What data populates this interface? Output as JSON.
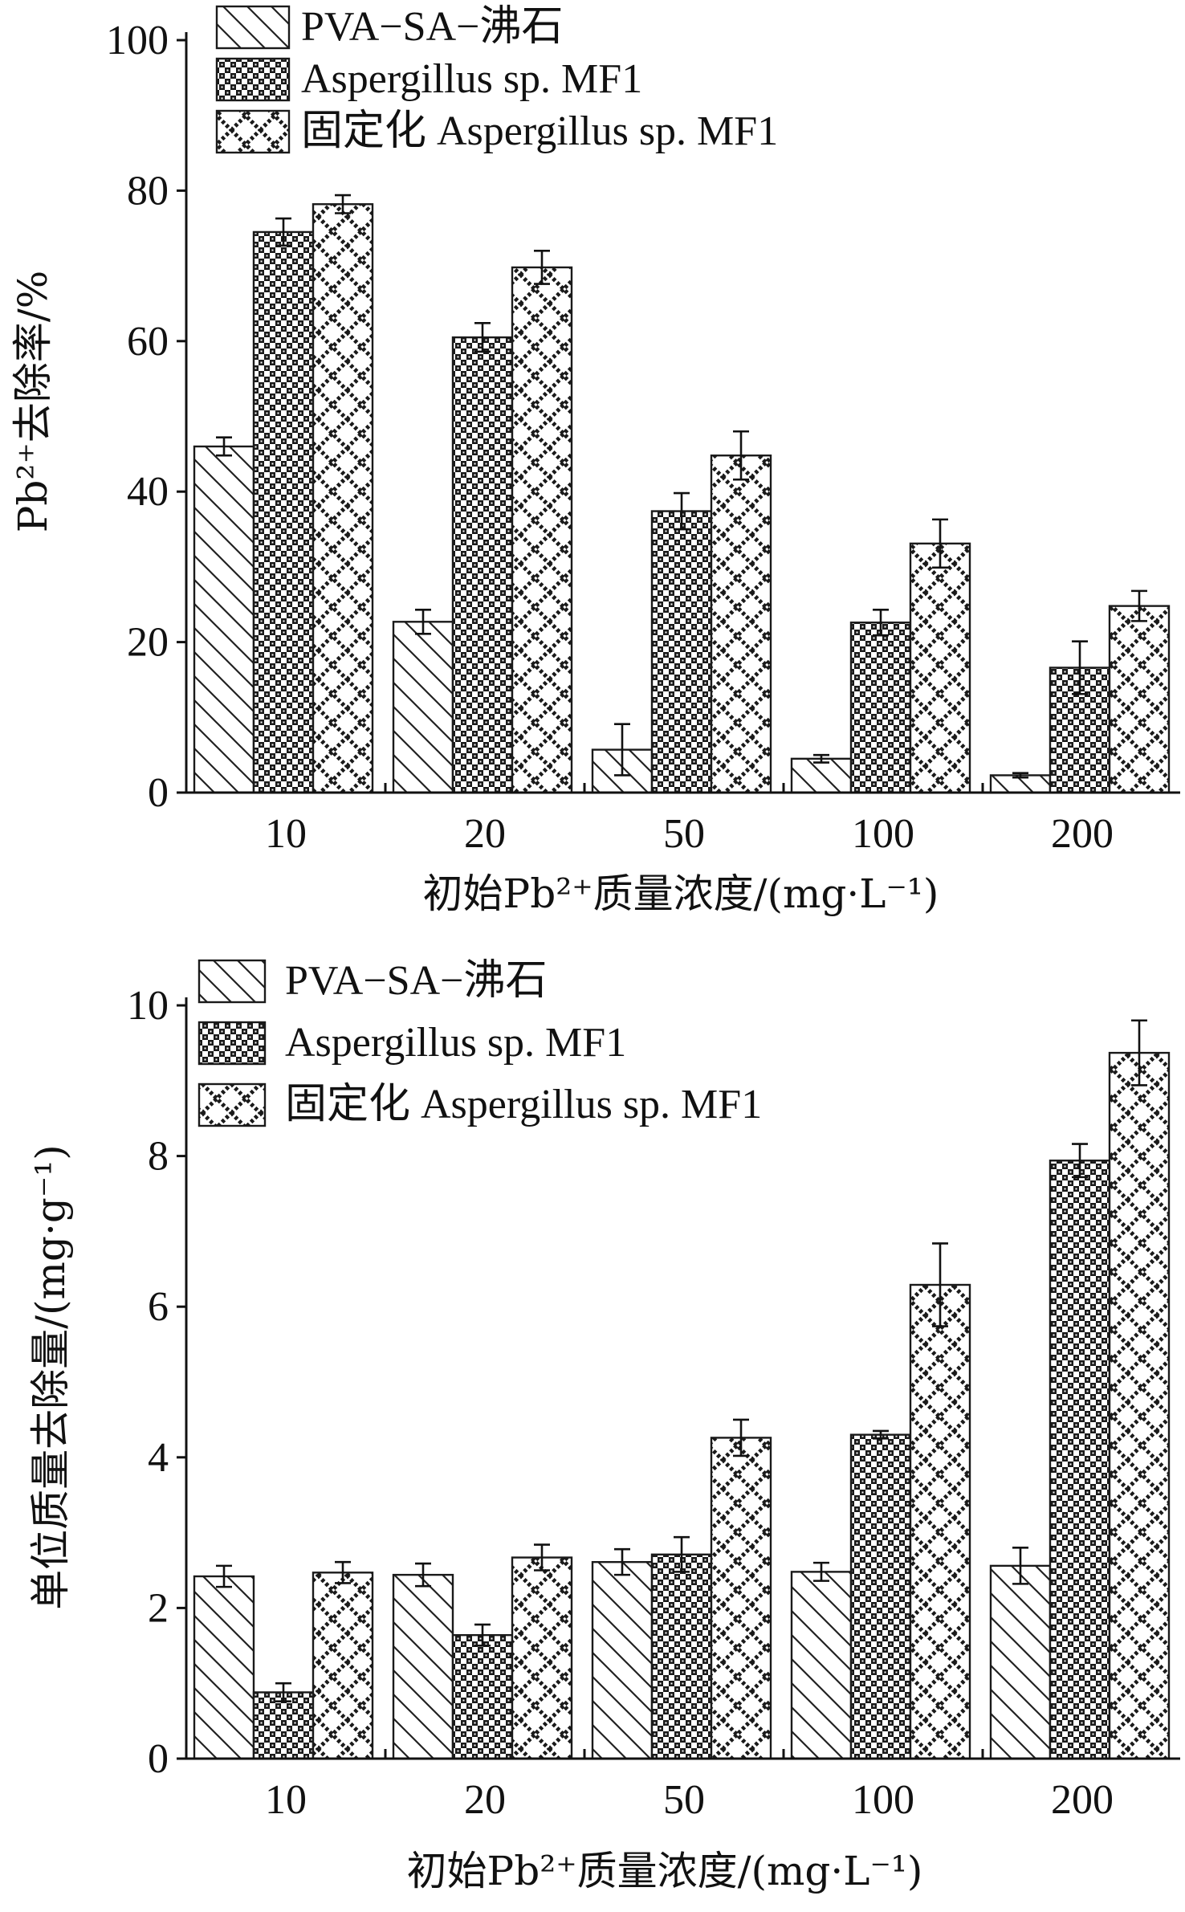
{
  "chart_data": [
    {
      "type": "bar",
      "ylabel": "Pb²⁺去除率/%",
      "xlabel": "初始Pb²⁺质量浓度/(mg·L⁻¹)",
      "categories": [
        "10",
        "20",
        "50",
        "100",
        "200"
      ],
      "ylim": [
        0,
        100
      ],
      "yticks": [
        "0",
        "20",
        "40",
        "60",
        "80",
        "100"
      ],
      "legend_position": "top-left",
      "series": [
        {
          "name": "PVA−SA−沸石",
          "pattern": "diagonal",
          "values": [
            46.0,
            22.7,
            5.7,
            4.5,
            2.3
          ],
          "errors": [
            1.2,
            1.6,
            3.4,
            0.5,
            0.3
          ]
        },
        {
          "name": "Aspergillus sp. MF1",
          "pattern": "checker",
          "values": [
            74.5,
            60.5,
            37.4,
            22.6,
            16.6
          ],
          "errors": [
            1.8,
            1.9,
            2.4,
            1.7,
            3.5
          ]
        },
        {
          "name": "固定化 Aspergillus sp. MF1",
          "pattern": "crosshatch",
          "values": [
            78.2,
            69.8,
            44.8,
            33.1,
            24.8
          ],
          "errors": [
            1.2,
            2.2,
            3.2,
            3.2,
            2.0
          ]
        }
      ]
    },
    {
      "type": "bar",
      "ylabel": "单位质量去除量/(mg·g⁻¹)",
      "xlabel": "初始Pb²⁺质量浓度/(mg·L⁻¹)",
      "categories": [
        "10",
        "20",
        "50",
        "100",
        "200"
      ],
      "ylim": [
        0,
        10
      ],
      "yticks": [
        "0",
        "2",
        "4",
        "6",
        "8",
        "10"
      ],
      "legend_position": "top-left",
      "series": [
        {
          "name": "PVA−SA−沸石",
          "pattern": "diagonal",
          "values": [
            2.42,
            2.44,
            2.61,
            2.48,
            2.56
          ],
          "errors": [
            0.14,
            0.15,
            0.17,
            0.12,
            0.24
          ]
        },
        {
          "name": "Aspergillus sp. MF1",
          "pattern": "checker",
          "values": [
            0.88,
            1.64,
            2.71,
            4.3,
            7.94
          ],
          "errors": [
            0.12,
            0.14,
            0.23,
            0.05,
            0.22
          ]
        },
        {
          "name": "固定化 Aspergillus sp. MF1",
          "pattern": "crosshatch",
          "values": [
            2.47,
            2.67,
            4.26,
            6.29,
            9.37
          ],
          "errors": [
            0.14,
            0.17,
            0.24,
            0.55,
            0.43
          ]
        }
      ]
    }
  ]
}
